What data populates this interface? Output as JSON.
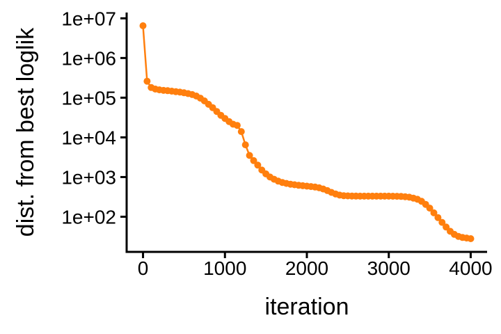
{
  "chart_data": {
    "type": "line",
    "xlabel": "iteration",
    "ylabel": "dist. from best loglik",
    "xlim": [
      -200,
      4200
    ],
    "xticks": [
      0,
      1000,
      2000,
      3000,
      4000
    ],
    "xtick_labels": [
      "0",
      "1000",
      "2000",
      "3000",
      "4000"
    ],
    "ylim": [
      13,
      14000000
    ],
    "yscale": "log",
    "yticks": [
      100,
      1000,
      10000,
      100000,
      1000000,
      10000000
    ],
    "ytick_labels": [
      "1e+02",
      "1e+03",
      "1e+04",
      "1e+05",
      "1e+06",
      "1e+07"
    ],
    "grid": false,
    "legend": "none",
    "series": [
      {
        "color": "#ff7f0e",
        "x": [
          0,
          50,
          100,
          150,
          200,
          250,
          300,
          350,
          400,
          450,
          500,
          550,
          600,
          650,
          700,
          750,
          800,
          850,
          900,
          950,
          1000,
          1050,
          1100,
          1150,
          1200,
          1250,
          1300,
          1350,
          1400,
          1450,
          1500,
          1550,
          1600,
          1650,
          1700,
          1750,
          1800,
          1850,
          1900,
          1950,
          2000,
          2050,
          2100,
          2150,
          2200,
          2250,
          2300,
          2350,
          2400,
          2450,
          2500,
          2550,
          2600,
          2650,
          2700,
          2750,
          2800,
          2850,
          2900,
          2950,
          3000,
          3050,
          3100,
          3150,
          3200,
          3250,
          3300,
          3350,
          3400,
          3450,
          3500,
          3550,
          3600,
          3650,
          3700,
          3750,
          3800,
          3850,
          3900,
          3950,
          4000
        ],
        "y": [
          6500000,
          260000,
          180000,
          165000,
          158000,
          153000,
          150000,
          146000,
          142000,
          138000,
          133000,
          127000,
          120000,
          110000,
          97000,
          83000,
          68000,
          56000,
          45000,
          36000,
          30000,
          25000,
          21500,
          20000,
          14000,
          6500,
          3500,
          2600,
          2000,
          1500,
          1200,
          1000,
          880,
          790,
          730,
          690,
          660,
          640,
          620,
          605,
          590,
          575,
          560,
          535,
          500,
          455,
          410,
          375,
          350,
          340,
          335,
          333,
          331,
          330,
          330,
          330,
          330,
          330,
          330,
          330,
          330,
          329,
          328,
          325,
          320,
          310,
          295,
          275,
          245,
          205,
          165,
          125,
          95,
          72,
          55,
          43,
          36,
          32,
          30,
          29,
          28
        ]
      }
    ]
  }
}
